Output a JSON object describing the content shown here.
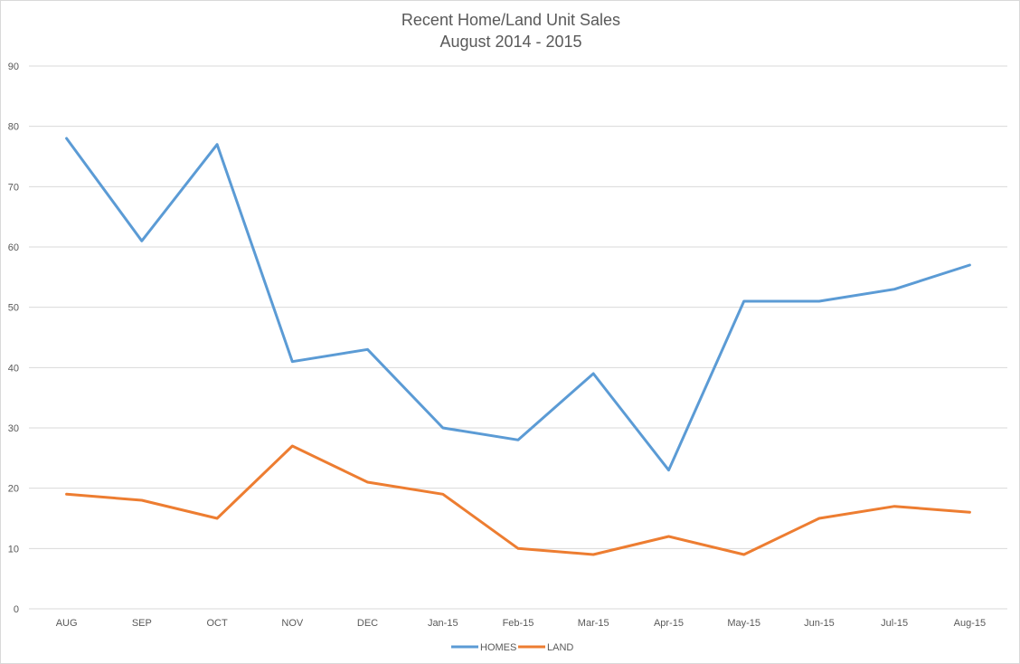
{
  "chart_data": {
    "type": "line",
    "title": "Recent Home/Land Unit Sales",
    "subtitle": "August 2014 - 2015",
    "xlabel": "",
    "ylabel": "",
    "categories": [
      "AUG",
      "SEP",
      "OCT",
      "NOV",
      "DEC",
      "Jan-15",
      "Feb-15",
      "Mar-15",
      "Apr-15",
      "May-15",
      "Jun-15",
      "Jul-15",
      "Aug-15"
    ],
    "ylim": [
      0,
      90
    ],
    "yticks": [
      0,
      10,
      20,
      30,
      40,
      50,
      60,
      70,
      80,
      90
    ],
    "grid": true,
    "legend_position": "bottom",
    "series": [
      {
        "name": "HOMES",
        "color": "#5b9bd5",
        "values": [
          78,
          61,
          77,
          41,
          43,
          30,
          28,
          39,
          23,
          51,
          51,
          53,
          57
        ]
      },
      {
        "name": "LAND",
        "color": "#ed7d31",
        "values": [
          19,
          18,
          15,
          27,
          21,
          19,
          10,
          9,
          12,
          9,
          15,
          17,
          16
        ]
      }
    ]
  }
}
